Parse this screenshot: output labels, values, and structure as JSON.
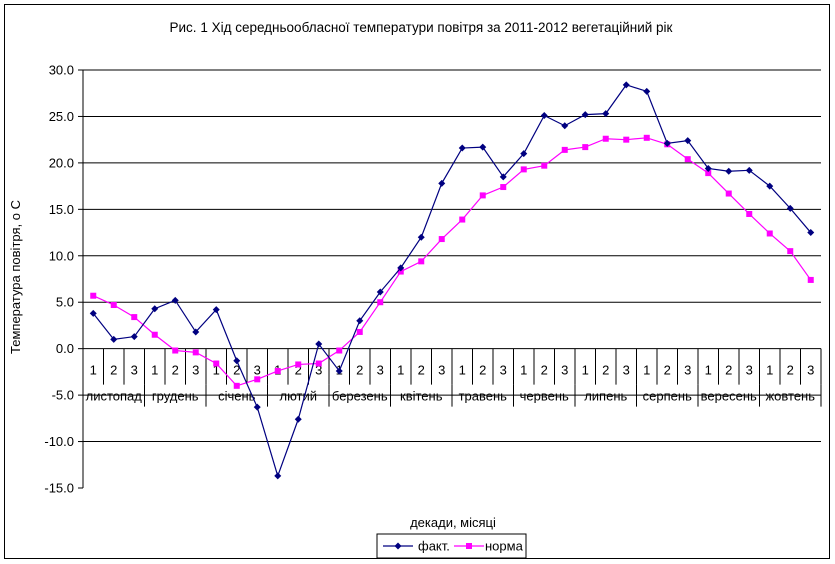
{
  "chart_data": {
    "type": "line",
    "title": "Рис. 1   Хід середньообласної температури повітря за 2011-2012 вегетаційний рік",
    "xlabel": "декади, місяці",
    "ylabel": "Температура повітря, о С",
    "ylim": [
      -15,
      30
    ],
    "yticks": [
      "30.0",
      "25.0",
      "20.0",
      "15.0",
      "10.0",
      "5.0",
      "0.0",
      "-5.0",
      "-10.0",
      "-15.0"
    ],
    "grid": true,
    "legend_position": "bottom",
    "decades": [
      "1",
      "2",
      "3",
      "1",
      "2",
      "3",
      "1",
      "2",
      "3",
      "1",
      "2",
      "3",
      "1",
      "2",
      "3",
      "1",
      "2",
      "3",
      "1",
      "2",
      "3",
      "1",
      "2",
      "3",
      "1",
      "2",
      "3",
      "1",
      "2",
      "3",
      "1",
      "2",
      "3",
      "1",
      "2",
      "3"
    ],
    "months": [
      "листопад",
      "грудень",
      "січень",
      "лютий",
      "березень",
      "квітень",
      "травень",
      "червень",
      "липень",
      "серпень",
      "вересень",
      "жовтень"
    ],
    "series": [
      {
        "name": "факт.",
        "color": "#000080",
        "marker": "diamond",
        "values": [
          3.8,
          1.0,
          1.3,
          4.3,
          5.2,
          1.8,
          4.2,
          -1.3,
          -6.3,
          -13.7,
          -7.6,
          0.5,
          -2.4,
          3.0,
          6.1,
          8.7,
          12.0,
          17.8,
          21.6,
          21.7,
          18.5,
          21.0,
          25.1,
          24.0,
          25.2,
          25.3,
          28.4,
          27.7,
          22.1,
          22.4,
          19.4,
          19.1,
          19.2,
          17.5,
          15.1,
          12.5
        ]
      },
      {
        "name": "норма",
        "color": "#ff00ff",
        "marker": "square",
        "values": [
          5.7,
          4.7,
          3.4,
          1.5,
          -0.2,
          -0.4,
          -1.6,
          -4.0,
          -3.3,
          -2.4,
          -1.7,
          -1.6,
          -0.2,
          1.8,
          5.0,
          8.3,
          9.4,
          11.8,
          13.9,
          16.5,
          17.4,
          19.3,
          19.7,
          21.4,
          21.7,
          22.6,
          22.5,
          22.7,
          22.0,
          20.4,
          18.9,
          16.7,
          14.5,
          12.4,
          10.5,
          7.4
        ]
      }
    ]
  }
}
